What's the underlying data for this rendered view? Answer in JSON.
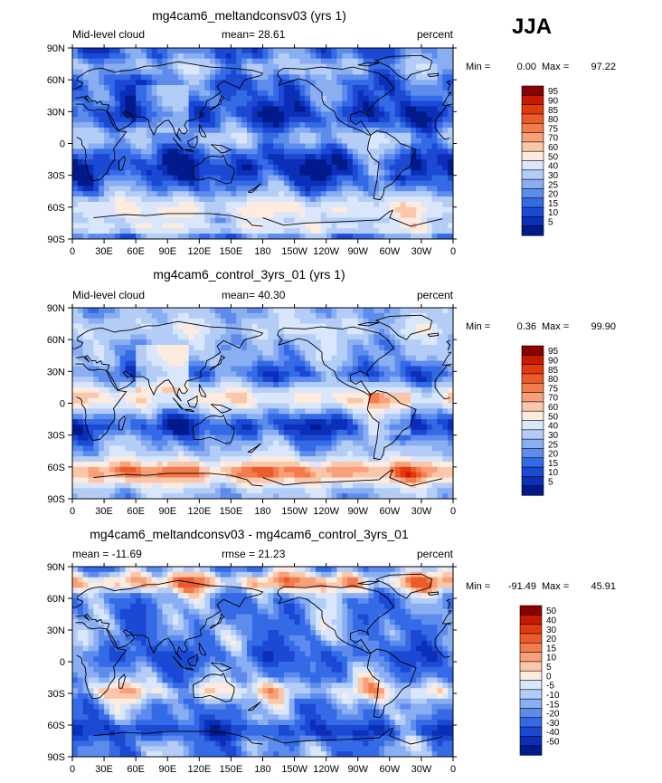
{
  "season": "JJA",
  "chart_data": [
    {
      "type": "heatmap",
      "title": "mg4cam6_meltandconsv03 (yrs 1)",
      "left_label": "Mid-level cloud",
      "center_label": "mean=  28.61",
      "right_label": "percent",
      "stats": {
        "min_label": "Min =",
        "min": "0.00",
        "max_label": "Max =",
        "max": "97.22"
      },
      "x_ticks": [
        "0",
        "30E",
        "60E",
        "90E",
        "120E",
        "150E",
        "180",
        "150W",
        "120W",
        "90W",
        "60W",
        "30W",
        "0"
      ],
      "y_ticks": [
        "90N",
        "60N",
        "30N",
        "0",
        "30S",
        "60S",
        "90S"
      ],
      "levels": [
        "95",
        "90",
        "85",
        "80",
        "75",
        "70",
        "60",
        "50",
        "40",
        "30",
        "25",
        "20",
        "15",
        "10",
        "5"
      ],
      "colors": [
        "#8b0000",
        "#c81a00",
        "#e13a0c",
        "#ee5a2a",
        "#f47b4c",
        "#f8a07a",
        "#fbc7aa",
        "#fdebdf",
        "#d9e6fb",
        "#b3cdf6",
        "#8aaef2",
        "#5e8ced",
        "#346ae6",
        "#1c49d4",
        "#0b2fb8",
        "#001a8c"
      ],
      "field": "meltandconsv"
    },
    {
      "type": "heatmap",
      "title": "mg4cam6_control_3yrs_01 (yrs 1)",
      "left_label": "Mid-level cloud",
      "center_label": "mean=  40.30",
      "right_label": "percent",
      "stats": {
        "min_label": "Min =",
        "min": "0.36",
        "max_label": "Max =",
        "max": "99.90"
      },
      "x_ticks": [
        "0",
        "30E",
        "60E",
        "90E",
        "120E",
        "150E",
        "180",
        "150W",
        "120W",
        "90W",
        "60W",
        "30W",
        "0"
      ],
      "y_ticks": [
        "90N",
        "60N",
        "30N",
        "0",
        "30S",
        "60S",
        "90S"
      ],
      "levels": [
        "95",
        "90",
        "85",
        "80",
        "75",
        "70",
        "60",
        "50",
        "40",
        "30",
        "25",
        "20",
        "15",
        "10",
        "5"
      ],
      "colors": [
        "#8b0000",
        "#c81a00",
        "#e13a0c",
        "#ee5a2a",
        "#f47b4c",
        "#f8a07a",
        "#fbc7aa",
        "#fdebdf",
        "#d9e6fb",
        "#b3cdf6",
        "#8aaef2",
        "#5e8ced",
        "#346ae6",
        "#1c49d4",
        "#0b2fb8",
        "#001a8c"
      ],
      "field": "control"
    },
    {
      "type": "heatmap",
      "title": "mg4cam6_meltandconsv03 - mg4cam6_control_3yrs_01",
      "left_label": "mean = -11.69",
      "center_label": "rmse =  21.23",
      "right_label": "percent",
      "stats": {
        "min_label": "Min =",
        "min": "-91.49",
        "max_label": "Max =",
        "max": "45.91"
      },
      "x_ticks": [
        "0",
        "30E",
        "60E",
        "90E",
        "120E",
        "150E",
        "180",
        "150W",
        "120W",
        "90W",
        "60W",
        "30W",
        "0"
      ],
      "y_ticks": [
        "90N",
        "60N",
        "30N",
        "0",
        "30S",
        "60S",
        "90S"
      ],
      "levels": [
        "50",
        "40",
        "30",
        "20",
        "15",
        "10",
        "5",
        "0",
        "-5",
        "-10",
        "-15",
        "-20",
        "-30",
        "-40",
        "-50"
      ],
      "colors": [
        "#8b0000",
        "#c81a00",
        "#e13a0c",
        "#ee5a2a",
        "#f47b4c",
        "#f8a07a",
        "#fbc7aa",
        "#fdebdf",
        "#d9e6fb",
        "#b3cdf6",
        "#8aaef2",
        "#5e8ced",
        "#346ae6",
        "#1c49d4",
        "#0b2fb8",
        "#001a8c"
      ],
      "field": "diff"
    }
  ]
}
